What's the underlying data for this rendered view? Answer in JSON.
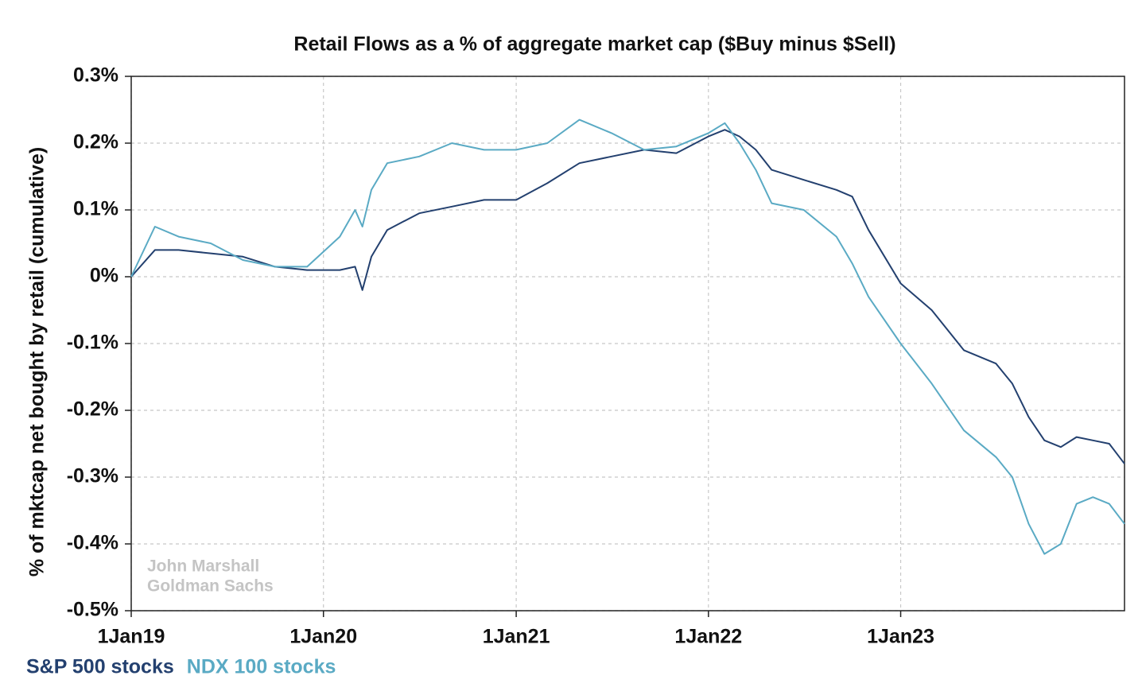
{
  "chart_data": {
    "type": "line",
    "title": "Retail Flows as a % of aggregate market cap ($Buy minus $Sell)",
    "y_label": "% of mktcap net bought by retail (cumulative)",
    "annotations": [
      "John Marshall",
      "Goldman Sachs"
    ],
    "x": [
      "2019-01-01",
      "2019-02-15",
      "2019-04-01",
      "2019-06-01",
      "2019-08-01",
      "2019-10-01",
      "2019-12-01",
      "2020-02-01",
      "2020-03-01",
      "2020-03-15",
      "2020-04-01",
      "2020-05-01",
      "2020-07-01",
      "2020-09-01",
      "2020-11-01",
      "2021-01-01",
      "2021-03-01",
      "2021-05-01",
      "2021-07-01",
      "2021-09-01",
      "2021-11-01",
      "2022-01-01",
      "2022-02-01",
      "2022-03-01",
      "2022-04-01",
      "2022-05-01",
      "2022-07-01",
      "2022-09-01",
      "2022-10-01",
      "2022-11-01",
      "2023-01-01",
      "2023-03-01",
      "2023-05-01",
      "2023-07-01",
      "2023-08-01",
      "2023-09-01",
      "2023-10-01",
      "2023-11-01",
      "2023-12-01",
      "2024-01-01",
      "2024-02-01",
      "2024-03-01"
    ],
    "series": [
      {
        "name": "S&P 500 stocks",
        "color": "#23406f",
        "values": [
          0,
          0.04,
          0.04,
          0.035,
          0.03,
          0.015,
          0.01,
          0.01,
          0.015,
          -0.02,
          0.03,
          0.07,
          0.095,
          0.105,
          0.115,
          0.115,
          0.14,
          0.17,
          0.18,
          0.19,
          0.185,
          0.21,
          0.22,
          0.21,
          0.19,
          0.16,
          0.145,
          0.13,
          0.12,
          0.07,
          -0.01,
          -0.05,
          -0.11,
          -0.13,
          -0.16,
          -0.21,
          -0.245,
          -0.255,
          -0.24,
          -0.245,
          -0.25,
          -0.28
        ]
      },
      {
        "name": "NDX 100 stocks",
        "color": "#5aaac4",
        "values": [
          0,
          0.075,
          0.06,
          0.05,
          0.025,
          0.015,
          0.015,
          0.06,
          0.1,
          0.075,
          0.13,
          0.17,
          0.18,
          0.2,
          0.19,
          0.19,
          0.2,
          0.235,
          0.215,
          0.19,
          0.195,
          0.215,
          0.23,
          0.2,
          0.16,
          0.11,
          0.1,
          0.06,
          0.02,
          -0.03,
          -0.1,
          -0.16,
          -0.23,
          -0.27,
          -0.3,
          -0.37,
          -0.415,
          -0.4,
          -0.34,
          -0.33,
          -0.34,
          -0.37
        ]
      }
    ],
    "xlim": [
      "2019-01-01",
      "2024-03-01"
    ],
    "xticks": [
      {
        "value": "2019-01-01",
        "label": "1Jan19"
      },
      {
        "value": "2020-01-01",
        "label": "1Jan20"
      },
      {
        "value": "2021-01-01",
        "label": "1Jan21"
      },
      {
        "value": "2022-01-01",
        "label": "1Jan22"
      },
      {
        "value": "2023-01-01",
        "label": "1Jan23"
      }
    ],
    "ylim": [
      -0.5,
      0.3
    ],
    "yticks": [
      {
        "value": 0.3,
        "label": "0.3%"
      },
      {
        "value": 0.2,
        "label": "0.2%"
      },
      {
        "value": 0.1,
        "label": "0.1%"
      },
      {
        "value": 0,
        "label": "0%"
      },
      {
        "value": -0.1,
        "label": "-0.1%"
      },
      {
        "value": -0.2,
        "label": "-0.2%"
      },
      {
        "value": -0.3,
        "label": "-0.3%"
      },
      {
        "value": -0.4,
        "label": "-0.4%"
      },
      {
        "value": -0.5,
        "label": "-0.5%"
      }
    ],
    "grid": true
  }
}
